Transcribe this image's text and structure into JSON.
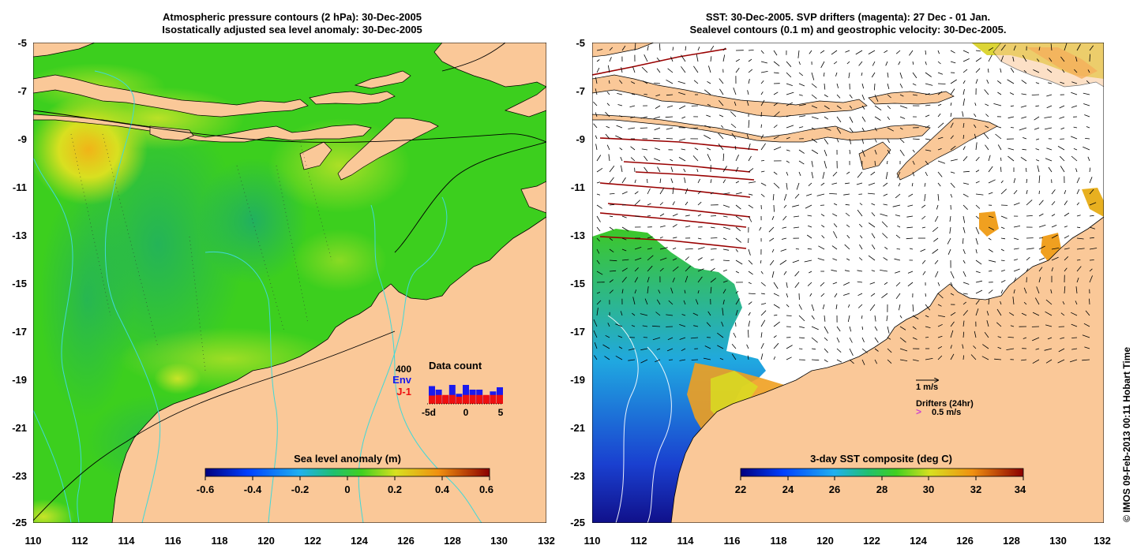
{
  "left_panel": {
    "title_line1": "Atmospheric pressure contours (2 hPa): 30-Dec-2005",
    "title_line2": "Isostatically adjusted sea level anomaly: 30-Dec-2005",
    "y_ticks": [
      "-5",
      "-7",
      "-9",
      "-11",
      "-13",
      "-15",
      "-17",
      "-19",
      "-21",
      "-23",
      "-25"
    ],
    "x_ticks": [
      "110",
      "112",
      "114",
      "116",
      "118",
      "120",
      "122",
      "124",
      "126",
      "128",
      "130",
      "132"
    ],
    "colorbar": {
      "label": "Sea level anomaly (m)",
      "ticks": [
        "-0.6",
        "-0.4",
        "-0.2",
        "0",
        "0.2",
        "0.4",
        "0.6"
      ],
      "range": [
        -0.6,
        0.6
      ]
    },
    "data_count": {
      "title": "Data count",
      "max_label": "400",
      "series1_label": "Env",
      "series2_label": "J-1",
      "x_labels": [
        "-5d",
        "0",
        "5"
      ],
      "colors": {
        "env": "#1a1aee",
        "j1": "#ee1010"
      },
      "days": [
        -5,
        -4,
        -3,
        -2,
        -1,
        0,
        1,
        2,
        3,
        4,
        5
      ],
      "env_total": [
        300,
        240,
        130,
        320,
        170,
        320,
        240,
        240,
        130,
        210,
        280
      ],
      "j1": [
        140,
        150,
        150,
        150,
        120,
        150,
        150,
        150,
        150,
        150,
        150
      ]
    }
  },
  "right_panel": {
    "title_line1": "SST: 30-Dec-2005. SVP drifters (magenta): 27 Dec - 01 Jan.",
    "title_line2": "Sealevel contours (0.1 m) and geostrophic velocity: 30-Dec-2005.",
    "y_ticks": [
      "-5",
      "-7",
      "-9",
      "-11",
      "-13",
      "-15",
      "-17",
      "-19",
      "-21",
      "-23",
      "-25"
    ],
    "x_ticks": [
      "110",
      "112",
      "114",
      "116",
      "118",
      "120",
      "122",
      "124",
      "126",
      "128",
      "130",
      "132"
    ],
    "velocity_legend": "1 m/s",
    "drifters_legend": "Drifters (24hr)",
    "drifters_speed": "0.5 m/s",
    "drifter_marker": ">",
    "colorbar": {
      "label": "3-day SST composite (deg C)",
      "ticks": [
        "22",
        "24",
        "26",
        "28",
        "30",
        "32",
        "34"
      ],
      "range": [
        22,
        34
      ]
    }
  },
  "credit": "© IMOS 09-Feb-2013 00:11 Hobart Time",
  "colors": {
    "land": "#fac898",
    "ocean_green": "#3ccf1e",
    "drifter": "#cc44cc",
    "track": "#990000"
  }
}
